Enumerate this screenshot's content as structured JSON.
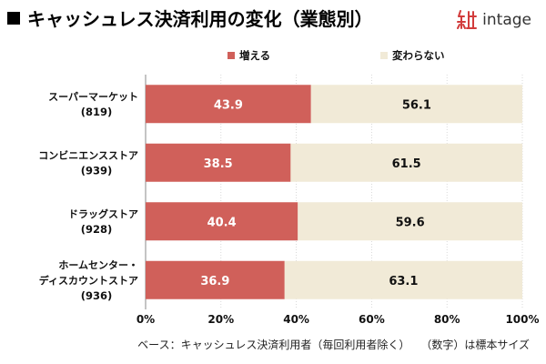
{
  "header": {
    "title": "キャッシュレス決済利用の変化（業態別）",
    "logo_text": "intage",
    "logo_icon": "intage-logo-mark"
  },
  "chart_data": {
    "type": "bar",
    "orientation": "horizontal",
    "stacked": true,
    "categories": [
      {
        "name": "スーパーマーケット",
        "n": "(819)"
      },
      {
        "name": "コンビニエンスストア",
        "n": "(939)"
      },
      {
        "name": "ドラッグストア",
        "n": "(928)"
      },
      {
        "name": "ホームセンター・\nディスカウントストア",
        "n": "(936)"
      }
    ],
    "series": [
      {
        "name": "増える",
        "color": "#d0605a",
        "label_color": "#ffffff",
        "values": [
          43.9,
          38.5,
          40.4,
          36.9
        ]
      },
      {
        "name": "変わらない",
        "color": "#f1ead7",
        "label_color": "#111111",
        "values": [
          56.1,
          61.5,
          59.6,
          63.1
        ]
      }
    ],
    "xlim": [
      0,
      100
    ],
    "xticks": [
      "0%",
      "20%",
      "40%",
      "60%",
      "80%",
      "100%"
    ],
    "grid": true,
    "legend_position": "top"
  },
  "footnote": {
    "base": "ベース：キャッシュレス決済利用者（毎回利用者除く）",
    "sample": "（数字）は標本サイズ"
  }
}
